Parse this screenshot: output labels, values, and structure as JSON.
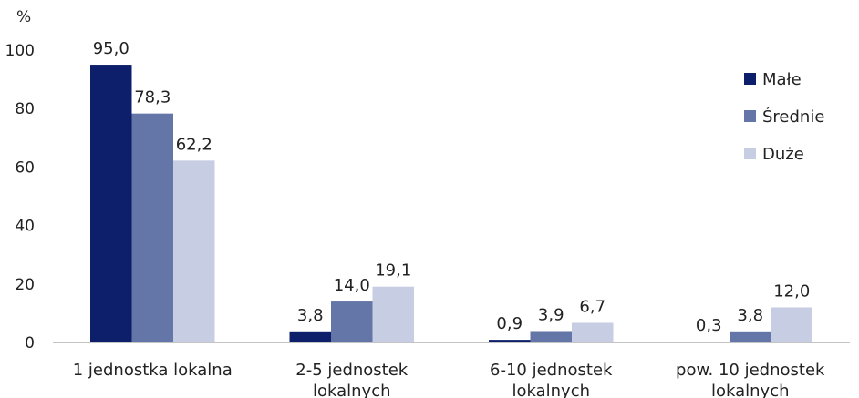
{
  "chart_data": {
    "type": "bar",
    "ylabel": "%",
    "ylim": [
      0,
      100
    ],
    "yticks": [
      0,
      20,
      40,
      60,
      80,
      100
    ],
    "categories": [
      [
        "1 jednostka lokalna"
      ],
      [
        "2-5 jednostek",
        "lokalnych"
      ],
      [
        "6-10 jednostek",
        "lokalnych"
      ],
      [
        "pow. 10 jednostek",
        "lokalnych"
      ]
    ],
    "series": [
      {
        "name": "Małe",
        "color": "#0d1f6b",
        "values": [
          95.0,
          3.8,
          0.9,
          0.3
        ],
        "labels": [
          "95,0",
          "3,8",
          "0,9",
          "0,3"
        ]
      },
      {
        "name": "Średnie",
        "color": "#6476a8",
        "values": [
          78.3,
          14.0,
          3.9,
          3.8
        ],
        "labels": [
          "78,3",
          "14,0",
          "3,9",
          "3,8"
        ]
      },
      {
        "name": "Duże",
        "color": "#c7cde2",
        "values": [
          62.2,
          19.1,
          6.7,
          12.0
        ],
        "labels": [
          "62,2",
          "19,1",
          "6,7",
          "12,0"
        ]
      }
    ],
    "legend_position": "top-right",
    "grid": false
  }
}
